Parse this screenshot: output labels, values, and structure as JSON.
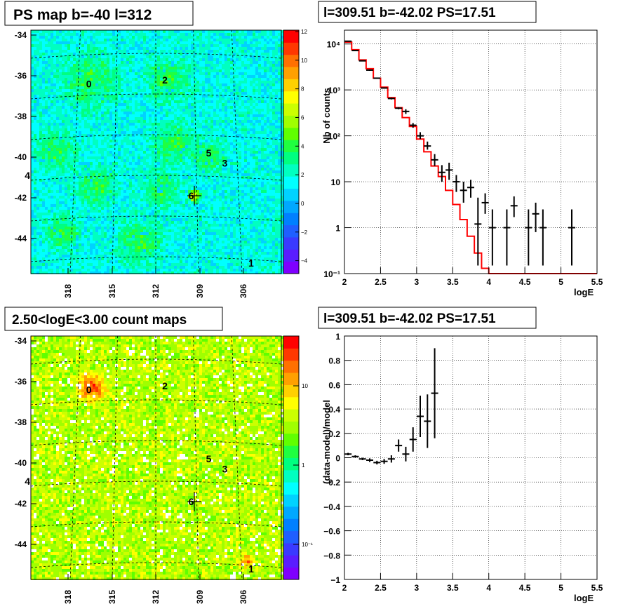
{
  "colors": {
    "model": "#ff0000",
    "data": "#000000",
    "grid": "#000000"
  },
  "palette": [
    "#7f00ff",
    "#5a1dff",
    "#3a3aff",
    "#1f5fff",
    "#0080ff",
    "#00a8ff",
    "#00d2ff",
    "#00ffff",
    "#00ffc0",
    "#00ff80",
    "#20ff40",
    "#60ff00",
    "#a0ff00",
    "#ccff00",
    "#ffff00",
    "#ffd000",
    "#ffa000",
    "#ff7000",
    "#ff3800",
    "#ff0000"
  ],
  "chart_data": [
    {
      "id": "ps-map",
      "type": "heatmap",
      "title": "PS map b=-40 l=312",
      "xticks": [
        "318",
        "315",
        "312",
        "309",
        "306"
      ],
      "yticks": [
        "-34",
        "-36",
        "-38",
        "-40",
        "-42",
        "-44"
      ],
      "colorbar_ticks": [
        "12",
        "10",
        "8",
        "6",
        "4",
        "2",
        "0",
        "−2",
        "−4"
      ],
      "colorbar_range": [
        -5,
        12
      ],
      "sources": [
        {
          "label": "0",
          "l": 316.6,
          "b": -36.4
        },
        {
          "label": "2",
          "l": 311.4,
          "b": -36.2
        },
        {
          "label": "5",
          "l": 308.4,
          "b": -39.8
        },
        {
          "label": "3",
          "l": 307.3,
          "b": -40.3
        },
        {
          "label": "4",
          "l": 320.8,
          "b": -40.9
        },
        {
          "label": "6",
          "l": 309.6,
          "b": -41.9
        },
        {
          "label": "1",
          "l": 305.5,
          "b": -45.2
        }
      ]
    },
    {
      "id": "spectrum",
      "type": "line",
      "title": "l=309.51 b=-42.02 PS=17.51",
      "xlabel": "logE",
      "ylabel": "Nb of counts",
      "xlim": [
        2,
        5.5
      ],
      "ylim": [
        0.1,
        20000
      ],
      "yscale": "log",
      "xticks": [
        "2",
        "2.5",
        "3",
        "3.5",
        "4",
        "4.5",
        "5",
        "5.5"
      ],
      "yticks": [
        {
          "v": 0.1,
          "label": "10⁻¹"
        },
        {
          "v": 1,
          "label": "1"
        },
        {
          "v": 10,
          "label": "10"
        },
        {
          "v": 100,
          "label": "10²"
        },
        {
          "v": 1000,
          "label": "10³"
        },
        {
          "v": 10000,
          "label": "10⁴"
        }
      ],
      "series": [
        {
          "kind": "model-step",
          "edges": [
            2,
            2.1,
            2.2,
            2.3,
            2.4,
            2.5,
            2.6,
            2.7,
            2.8,
            2.9,
            3,
            3.1,
            3.2,
            3.3,
            3.4,
            3.5,
            3.6,
            3.7,
            3.8,
            3.9,
            4,
            5.5
          ],
          "values": [
            11000,
            7500,
            4500,
            2900,
            1800,
            1150,
            680,
            410,
            250,
            160,
            85,
            45,
            22,
            13,
            6.5,
            3.2,
            1.5,
            0.65,
            0.28,
            0.13,
            0.08
          ]
        },
        {
          "kind": "data-points",
          "x": [
            2.05,
            2.15,
            2.25,
            2.35,
            2.45,
            2.55,
            2.65,
            2.75,
            2.85,
            2.95,
            3.05,
            3.15,
            3.25,
            3.35,
            3.45,
            3.55,
            3.65,
            3.75,
            3.85,
            3.95,
            4.05,
            4.25,
            4.35,
            4.55,
            4.65,
            4.75,
            5.15
          ],
          "y": [
            11500,
            7200,
            4300,
            2700,
            1800,
            1100,
            650,
            400,
            340,
            170,
            100,
            60,
            30,
            16,
            18,
            10,
            6.5,
            7.5,
            1.2,
            3.5,
            1.0,
            1.0,
            3.0,
            1.0,
            2.0,
            1.0,
            1.0
          ],
          "lo": [
            11300,
            7100,
            4200,
            2600,
            1750,
            1070,
            620,
            380,
            300,
            150,
            85,
            50,
            22,
            10,
            11,
            6,
            3.5,
            4.5,
            0.15,
            2.0,
            0.15,
            0.15,
            1.7,
            0.15,
            0.8,
            0.15,
            0.15
          ],
          "hi": [
            11700,
            7300,
            4400,
            2800,
            1850,
            1130,
            680,
            420,
            380,
            190,
            120,
            75,
            40,
            23,
            26,
            14,
            10,
            11,
            4.5,
            5.6,
            2.5,
            2.5,
            4.8,
            2.5,
            3.5,
            2.5,
            2.5
          ]
        }
      ]
    },
    {
      "id": "count-map",
      "type": "heatmap",
      "title": "2.50<logE<3.00 count maps",
      "xticks": [
        "318",
        "315",
        "312",
        "309",
        "306"
      ],
      "yticks": [
        "-34",
        "-36",
        "-38",
        "-40",
        "-42",
        "-44"
      ],
      "colorbar_ticks": [
        "10",
        "1",
        "10⁻¹"
      ],
      "sources": [
        {
          "label": "0",
          "l": 316.6,
          "b": -36.4
        },
        {
          "label": "2",
          "l": 311.4,
          "b": -36.2
        },
        {
          "label": "5",
          "l": 308.4,
          "b": -39.8
        },
        {
          "label": "3",
          "l": 307.3,
          "b": -40.3
        },
        {
          "label": "4",
          "l": 320.8,
          "b": -40.9
        },
        {
          "label": "6",
          "l": 309.6,
          "b": -41.9
        },
        {
          "label": "1",
          "l": 305.5,
          "b": -45.2
        }
      ]
    },
    {
      "id": "residuals",
      "type": "scatter",
      "title": "l=309.51 b=-42.02 PS=17.51",
      "xlabel": "logE",
      "ylabel": "(data-model)/model",
      "xlim": [
        2,
        5.5
      ],
      "ylim": [
        -1,
        1
      ],
      "xticks": [
        "2",
        "2.5",
        "3",
        "3.5",
        "4",
        "4.5",
        "5",
        "5.5"
      ],
      "yticks": [
        "1",
        "0.8",
        "0.6",
        "0.4",
        "0.2",
        "0",
        "−0.2",
        "−0.4",
        "−0.6",
        "−0.8",
        "−1"
      ],
      "x": [
        2.05,
        2.15,
        2.25,
        2.35,
        2.45,
        2.55,
        2.65,
        2.75,
        2.85,
        2.95,
        3.05,
        3.15,
        3.25
      ],
      "y": [
        0.03,
        0.01,
        -0.01,
        -0.02,
        -0.04,
        -0.03,
        -0.01,
        0.1,
        0.03,
        0.15,
        0.34,
        0.3,
        0.53
      ],
      "err": [
        0.01,
        0.01,
        0.01,
        0.015,
        0.015,
        0.02,
        0.03,
        0.05,
        0.06,
        0.1,
        0.17,
        0.22,
        0.37
      ]
    }
  ]
}
